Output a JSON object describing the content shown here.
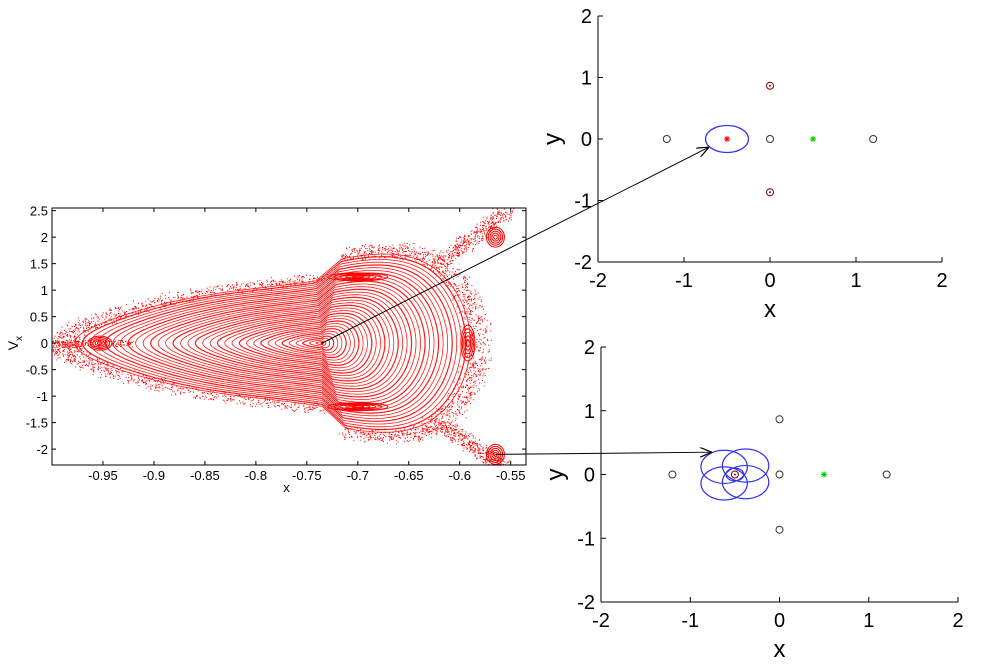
{
  "chart_data": [
    {
      "id": "poincare",
      "type": "scatter",
      "title": "",
      "xlabel": "x",
      "ylabel": "V",
      "ylabel_sub": "x",
      "xlim": [
        -1.0,
        -0.535
      ],
      "ylim": [
        -2.3,
        2.55
      ],
      "grid": false,
      "point_color": "#ff0000",
      "xticks": [
        -0.95,
        -0.9,
        -0.85,
        -0.8,
        -0.75,
        -0.7,
        -0.65,
        -0.6,
        -0.55
      ],
      "xtick_labels": [
        "-0.95",
        "-0.9",
        "-0.85",
        "-0.8",
        "-0.75",
        "-0.7",
        "-0.65",
        "-0.6",
        "-0.55"
      ],
      "yticks": [
        2.5,
        2,
        1.5,
        1,
        0.5,
        0,
        -0.5,
        -1,
        -1.5,
        -2
      ],
      "ytick_labels": [
        "2.5",
        "2",
        "1.5",
        "1",
        "0.5",
        "0",
        "-0.5",
        "-1",
        "-1.5",
        "-2"
      ],
      "central_fixed_point": [
        -0.735,
        0
      ],
      "separatrix": {
        "tip": [
          -0.985,
          0
        ],
        "corner_top": [
          -0.555,
          2.5
        ],
        "corner_bottom": [
          -0.56,
          -2.3
        ],
        "right_edge_x": -0.585
      },
      "islands": [
        {
          "center": [
            -0.953,
            0.0
          ]
        },
        {
          "center": [
            -0.565,
            2.0
          ]
        },
        {
          "center": [
            -0.565,
            -2.1
          ]
        },
        {
          "center": [
            -0.592,
            0.0
          ]
        },
        {
          "center": [
            -0.7,
            1.25
          ]
        },
        {
          "center": [
            -0.7,
            -1.2
          ]
        }
      ]
    },
    {
      "id": "orbit-top",
      "type": "scatter",
      "title": "",
      "xlabel": "x",
      "ylabel": "y",
      "xlim": [
        -2,
        2
      ],
      "ylim": [
        -2,
        2
      ],
      "grid": false,
      "xticks": [
        -2,
        -1,
        0,
        1,
        2
      ],
      "xtick_labels": [
        "-2",
        "-1",
        "0",
        "1",
        "2"
      ],
      "yticks": [
        2,
        1,
        0,
        -1,
        -2
      ],
      "ytick_labels": [
        "2",
        "1",
        "0",
        "-1",
        "-2"
      ],
      "orbit_color": "#3333ee",
      "orbit": {
        "kind": "ellipse",
        "center": [
          -0.5,
          0.0
        ],
        "rx": 0.25,
        "ry": 0.22
      },
      "markers": [
        {
          "x": -1.2,
          "y": 0,
          "kind": "circle",
          "color": "#333333"
        },
        {
          "x": 0,
          "y": 0,
          "kind": "circle",
          "color": "#333333"
        },
        {
          "x": 1.2,
          "y": 0,
          "kind": "circle",
          "color": "#333333"
        },
        {
          "x": 0,
          "y": 0.866,
          "kind": "circle-dot",
          "color": "#800000"
        },
        {
          "x": 0,
          "y": -0.866,
          "kind": "circle-dot",
          "color": "#800000"
        },
        {
          "x": -0.5,
          "y": 0,
          "kind": "star",
          "color": "#ff0000"
        },
        {
          "x": 0.5,
          "y": 0,
          "kind": "star",
          "color": "#00cc00"
        }
      ]
    },
    {
      "id": "orbit-bottom",
      "type": "scatter",
      "title": "",
      "xlabel": "x",
      "ylabel": "y",
      "xlim": [
        -2,
        2
      ],
      "ylim": [
        -2,
        2
      ],
      "grid": false,
      "xticks": [
        -2,
        -1,
        0,
        1,
        2
      ],
      "xtick_labels": [
        "-2",
        "-1",
        "0",
        "1",
        "2"
      ],
      "yticks": [
        2,
        1,
        0,
        -1,
        -2
      ],
      "ytick_labels": [
        "2",
        "1",
        "0",
        "-1",
        "-2"
      ],
      "orbit_color": "#3333ee",
      "orbit": {
        "kind": "rosette",
        "loops": [
          {
            "center": [
              -0.62,
              0.12
            ],
            "r": 0.26
          },
          {
            "center": [
              -0.38,
              0.14
            ],
            "r": 0.26
          },
          {
            "center": [
              -0.62,
              -0.14
            ],
            "r": 0.26
          },
          {
            "center": [
              -0.38,
              -0.12
            ],
            "r": 0.26
          },
          {
            "center": [
              -0.5,
              0.0
            ],
            "r": 0.1
          }
        ]
      },
      "markers": [
        {
          "x": -1.2,
          "y": 0,
          "kind": "circle",
          "color": "#333333"
        },
        {
          "x": 0,
          "y": 0,
          "kind": "circle",
          "color": "#333333"
        },
        {
          "x": 1.2,
          "y": 0,
          "kind": "circle",
          "color": "#333333"
        },
        {
          "x": 0,
          "y": 0.866,
          "kind": "circle",
          "color": "#333333"
        },
        {
          "x": 0,
          "y": -0.866,
          "kind": "circle",
          "color": "#333333"
        },
        {
          "x": -0.5,
          "y": 0,
          "kind": "circle-dot",
          "color": "#800000"
        },
        {
          "x": 0.5,
          "y": 0,
          "kind": "star",
          "color": "#00cc00"
        }
      ]
    }
  ],
  "arrows": [
    {
      "from_chart": 0,
      "from": [
        -0.735,
        0.0
      ],
      "to_chart": 1,
      "to": [
        -0.72,
        -0.14
      ]
    },
    {
      "from_chart": 0,
      "from": [
        -0.565,
        -2.1
      ],
      "to_chart": 2,
      "to": [
        -0.77,
        0.35
      ]
    }
  ]
}
